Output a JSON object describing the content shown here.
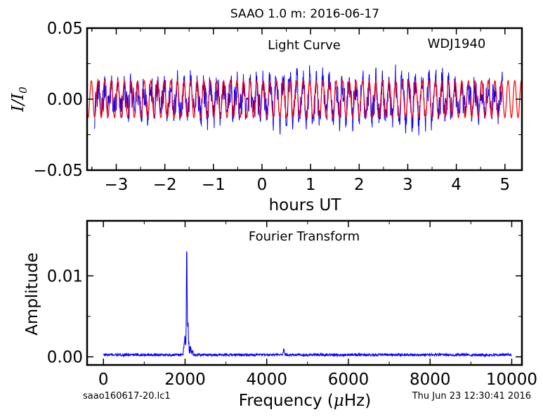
{
  "figure": {
    "suptitle": "SAAO 1.0 m:  2016-06-17",
    "footer_left": "saao160617-20.lc1",
    "footer_right": "Thu Jun 23 12:30:41 2016"
  },
  "chart_data": [
    {
      "type": "line",
      "panel": "light-curve",
      "annotations": [
        "Light Curve",
        "WDJ1940"
      ],
      "xlabel": "hours UT",
      "ylabel_base": "I",
      "ylabel_slash": "/",
      "ylabel_sub_base": "I",
      "ylabel_sub": "0",
      "xlim": [
        -3.6,
        5.35
      ],
      "ylim": [
        -0.05,
        0.05
      ],
      "xticks": [
        -3,
        -2,
        -1,
        0,
        1,
        2,
        3,
        4,
        5
      ],
      "xtick_labels": [
        "−3",
        "−2",
        "−1",
        "0",
        "1",
        "2",
        "3",
        "4",
        "5"
      ],
      "yticks": [
        -0.05,
        0.0,
        0.05
      ],
      "ytick_labels": [
        "−0.05",
        "0.00",
        "0.05"
      ],
      "series": [
        {
          "role": "data",
          "color": "#0000ff",
          "x_range": [
            -3.45,
            4.95
          ],
          "envelope_upper": 0.028,
          "envelope_lower": -0.026,
          "note_shape": "rapid oscillation at ~7.3 min period (2040 uHz)"
        },
        {
          "role": "model",
          "color": "#ff0000",
          "x_range": [
            -3.6,
            5.35
          ],
          "amplitude": 0.013,
          "frequency_uHz": 2040
        }
      ]
    },
    {
      "type": "line",
      "panel": "fourier-transform",
      "annotations": [
        "Fourier Transform"
      ],
      "xlabel_prefix": "Frequency (",
      "xlabel_mu": "μ",
      "xlabel_suffix": "Hz)",
      "ylabel": "Amplitude",
      "xlim": [
        -400,
        10250
      ],
      "ylim": [
        -0.001,
        0.0168
      ],
      "xticks": [
        0,
        2000,
        4000,
        6000,
        8000,
        10000
      ],
      "xtick_labels": [
        "0",
        "2000",
        "4000",
        "6000",
        "8000",
        "10000"
      ],
      "yticks": [
        0.0,
        0.01
      ],
      "ytick_labels": [
        "0.00",
        "0.01"
      ],
      "series": [
        {
          "color": "#0000ff",
          "x_range": [
            0,
            10000
          ],
          "noise_level": 0.00025,
          "peaks": [
            {
              "x": 2040,
              "y": 0.013
            },
            {
              "x": 2070,
              "y": 0.003
            },
            {
              "x": 1990,
              "y": 0.0017
            },
            {
              "x": 4420,
              "y": 0.0008
            }
          ]
        }
      ]
    }
  ]
}
